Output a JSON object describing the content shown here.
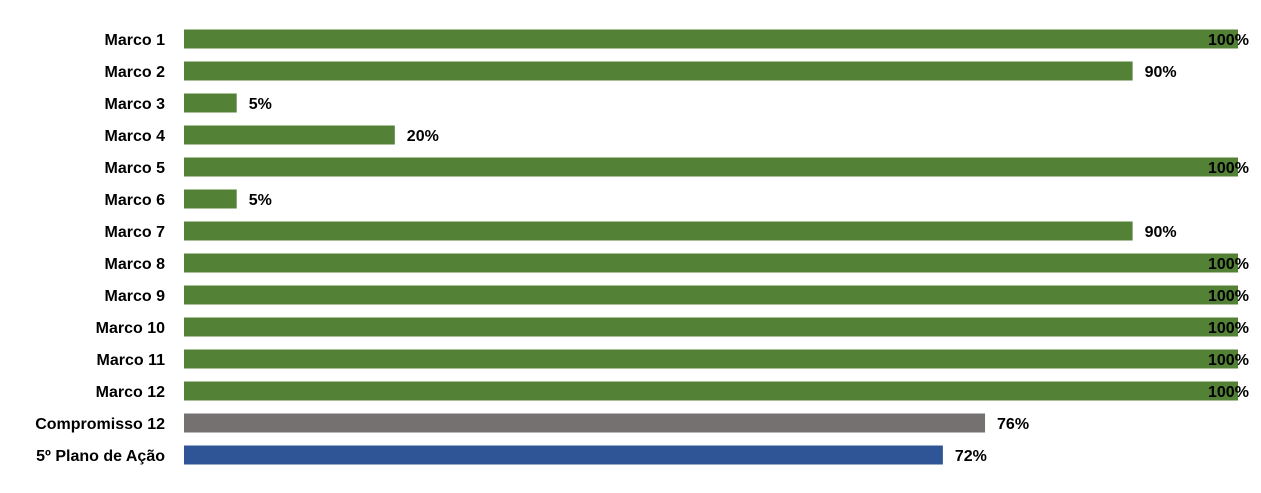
{
  "chart_data": {
    "type": "bar",
    "orientation": "horizontal",
    "categories": [
      "Marco 1",
      "Marco 2",
      "Marco 3",
      "Marco 4",
      "Marco 5",
      "Marco 6",
      "Marco 7",
      "Marco 8",
      "Marco 9",
      "Marco 10",
      "Marco 11",
      "Marco 12",
      "Compromisso 12",
      "5º Plano de Ação"
    ],
    "values": [
      100,
      90,
      5,
      20,
      100,
      5,
      90,
      100,
      100,
      100,
      100,
      100,
      76,
      72
    ],
    "labels": [
      "100%",
      "90%",
      "5%",
      "20%",
      "100%",
      "5%",
      "90%",
      "100%",
      "100%",
      "100%",
      "100%",
      "100%",
      "76%",
      "72%"
    ],
    "colors": [
      "#538135",
      "#538135",
      "#538135",
      "#538135",
      "#538135",
      "#538135",
      "#538135",
      "#538135",
      "#538135",
      "#538135",
      "#538135",
      "#538135",
      "#767171",
      "#2F5597"
    ],
    "xlim": [
      0,
      100
    ],
    "grid": false,
    "legend": "none",
    "title": "",
    "xlabel": "",
    "ylabel": ""
  }
}
